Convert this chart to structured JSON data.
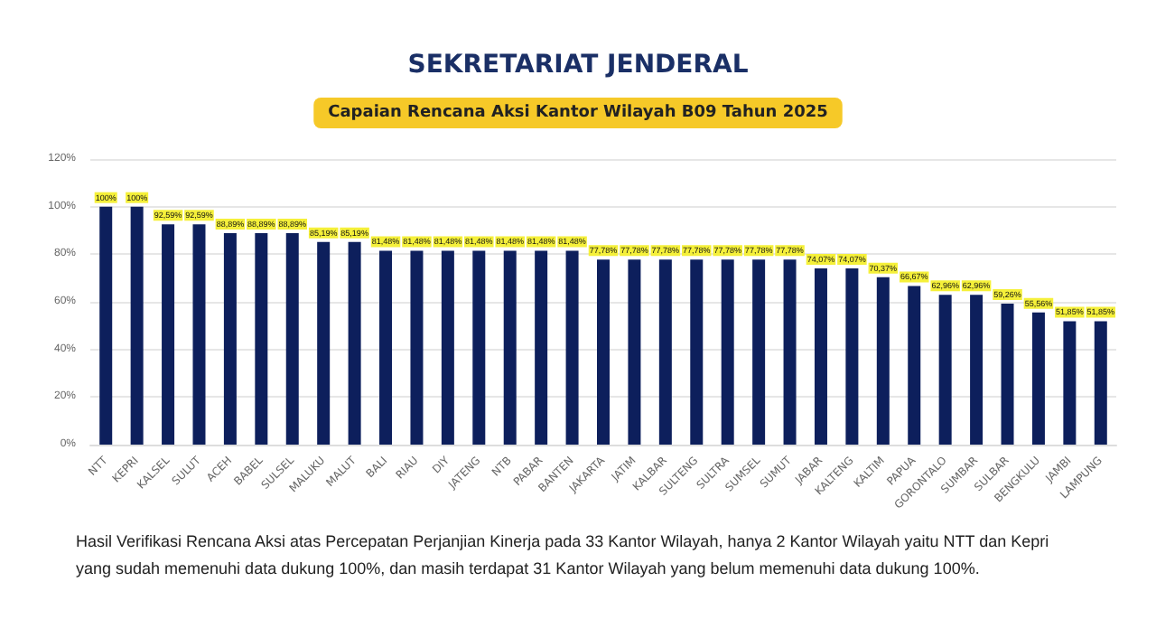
{
  "chart_data": {
    "type": "bar",
    "title": "SEKRETARIAT JENDERAL",
    "subtitle": "Capaian Rencana Aksi Kantor Wilayah B09 Tahun 2025",
    "categories": [
      "NTT",
      "KEPRI",
      "KALSEL",
      "SULUT",
      "ACEH",
      "BABEL",
      "SULSEL",
      "MALUKU",
      "MALUT",
      "BALI",
      "RIAU",
      "DIY",
      "JATENG",
      "NTB",
      "PABAR",
      "BANTEN",
      "JAKARTA",
      "JATIM",
      "KALBAR",
      "SULTENG",
      "SULTRA",
      "SUMSEL",
      "SUMUT",
      "JABAR",
      "KALTENG",
      "KALTIM",
      "PAPUA",
      "GORONTALO",
      "SUMBAR",
      "SULBAR",
      "BENGKULU",
      "JAMBI",
      "LAMPUNG"
    ],
    "values": [
      100,
      100,
      92.59,
      92.59,
      88.89,
      88.89,
      88.89,
      85.19,
      85.19,
      81.48,
      81.48,
      81.48,
      81.48,
      81.48,
      81.48,
      81.48,
      77.78,
      77.78,
      77.78,
      77.78,
      77.78,
      77.78,
      77.78,
      74.07,
      74.07,
      70.37,
      66.67,
      62.96,
      62.96,
      59.26,
      55.56,
      51.85,
      51.85
    ],
    "value_labels": [
      "100%",
      "100%",
      "92,59%",
      "92,59%",
      "88,89%",
      "88,89%",
      "88,89%",
      "85,19%",
      "85,19%",
      "81,48%",
      "81,48%",
      "81,48%",
      "81,48%",
      "81,48%",
      "81,48%",
      "81,48%",
      "77,78%",
      "77,78%",
      "77,78%",
      "77,78%",
      "77,78%",
      "77,78%",
      "77,78%",
      "74,07%",
      "74,07%",
      "70,37%",
      "66,67%",
      "62,96%",
      "62,96%",
      "59,26%",
      "55,56%",
      "51,85%",
      "51,85%"
    ],
    "color": "#0d1f5c",
    "ylim": [
      0,
      120
    ],
    "yticks": [
      {
        "value": 0,
        "label": "0%"
      },
      {
        "value": 20,
        "label": "20%"
      },
      {
        "value": 40,
        "label": "40%"
      },
      {
        "value": 60,
        "label": "60%"
      },
      {
        "value": 80,
        "label": "80%"
      },
      {
        "value": 100,
        "label": "100%"
      },
      {
        "value": 120,
        "label": "120%"
      }
    ],
    "grid": "y",
    "annotations": [
      "Hasil Verifikasi Rencana Aksi atas Percepatan Perjanjian Kinerja pada 33 Kantor Wilayah, hanya 2 Kantor Wilayah yaitu NTT dan Kepri yang sudah memenuhi data dukung 100%, dan masih terdapat 31 Kantor Wilayah yang belum memenuhi data dukung 100%."
    ]
  }
}
